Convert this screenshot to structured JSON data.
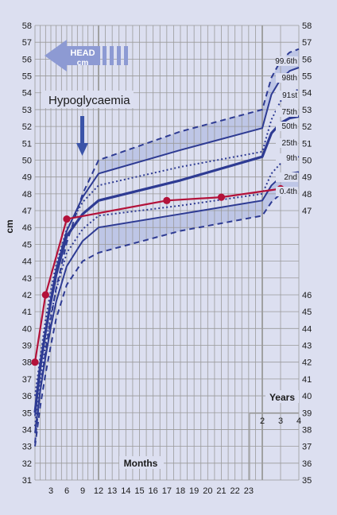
{
  "chart_data": {
    "type": "line",
    "title": "HEAD cm",
    "title_line1": "HEAD",
    "title_line2": "cm",
    "ylabel": "cm",
    "ylim": [
      31,
      58
    ],
    "y_ticks": [
      31,
      32,
      33,
      34,
      35,
      36,
      37,
      38,
      39,
      40,
      41,
      42,
      43,
      44,
      45,
      46,
      47,
      48,
      49,
      50,
      51,
      52,
      53,
      54,
      55,
      56,
      57,
      58
    ],
    "right_y_ticks_upper": [
      47,
      48,
      49,
      50,
      51,
      52,
      53,
      54,
      55,
      56,
      57,
      58
    ],
    "right_y_ticks_lower": [
      35,
      36,
      37,
      38,
      39,
      40,
      41,
      42,
      43,
      44,
      45,
      46
    ],
    "month_ticks": [
      3,
      6,
      9,
      12,
      13,
      14,
      15,
      16,
      17,
      18,
      19,
      20,
      21,
      22,
      23
    ],
    "year_ticks": [
      2,
      3,
      4
    ],
    "xlabel_months": "Months",
    "xlabel_years": "Years",
    "annotation": "Hypoglycaemia",
    "annotation_month": 9,
    "centile_labels": [
      "99.6th",
      "98th",
      "91st",
      "75th",
      "50th",
      "25th",
      "9th",
      "2nd",
      "0.4th"
    ],
    "centiles": [
      {
        "label": "99.6th",
        "style": "dashed",
        "x": [
          0,
          1,
          2,
          3,
          4,
          6,
          9,
          12,
          18,
          24,
          30,
          36,
          42,
          48
        ],
        "y": [
          33.2,
          36.4,
          38.6,
          40.6,
          42.4,
          45.1,
          48.0,
          50.0,
          51.7,
          53.0,
          54.9,
          55.9,
          56.4,
          56.6
        ]
      },
      {
        "label": "98th",
        "style": "solid",
        "x": [
          0,
          1,
          2,
          3,
          4,
          6,
          9,
          12,
          18,
          24,
          30,
          36,
          42,
          48
        ],
        "y": [
          34.8,
          37.5,
          39.8,
          41.8,
          43.5,
          45.8,
          47.8,
          49.2,
          50.6,
          51.9,
          53.9,
          54.8,
          55.3,
          55.5
        ]
      },
      {
        "label": "91st",
        "style": "dotted",
        "x": [
          0,
          1,
          2,
          3,
          4,
          6,
          9,
          12,
          18,
          24,
          30,
          36,
          42,
          48
        ],
        "y": [
          36.0,
          38.3,
          40.5,
          42.3,
          43.8,
          45.9,
          47.5,
          48.5,
          49.6,
          50.5,
          52.4,
          53.5,
          54.0,
          54.2
        ]
      },
      {
        "label": "50th",
        "style": "solid-thick",
        "x": [
          0,
          1,
          2,
          3,
          4,
          6,
          9,
          12,
          18,
          24,
          30,
          36,
          42,
          48
        ],
        "y": [
          35.0,
          37.8,
          39.8,
          41.6,
          43.2,
          45.5,
          46.8,
          47.6,
          48.8,
          50.2,
          51.6,
          52.2,
          52.5,
          52.6
        ]
      },
      {
        "label": "9th",
        "style": "dotted",
        "x": [
          0,
          1,
          2,
          3,
          4,
          6,
          9,
          12,
          18,
          24,
          30,
          36,
          42,
          48
        ],
        "y": [
          34.2,
          36.9,
          39.0,
          40.8,
          42.3,
          44.5,
          45.9,
          46.7,
          47.3,
          48.0,
          49.2,
          49.8,
          50.1,
          50.2
        ]
      },
      {
        "label": "2nd",
        "style": "solid",
        "x": [
          0,
          1,
          2,
          3,
          4,
          6,
          9,
          12,
          18,
          24,
          30,
          36,
          42,
          48
        ],
        "y": [
          33.8,
          36.3,
          38.3,
          40.1,
          41.6,
          43.7,
          45.2,
          46.0,
          46.8,
          47.6,
          48.5,
          49.0,
          49.2,
          49.3
        ]
      },
      {
        "label": "0.4th",
        "style": "dashed",
        "x": [
          0,
          1,
          2,
          3,
          4,
          6,
          9,
          12,
          18,
          24,
          30,
          36,
          42,
          48
        ],
        "y": [
          33.0,
          35.4,
          37.3,
          39.0,
          40.6,
          42.6,
          44.0,
          44.5,
          45.8,
          46.7,
          47.5,
          48.0,
          48.2,
          48.3
        ]
      }
    ],
    "series": [
      {
        "name": "",
        "x": [
          0,
          2,
          6,
          17,
          21,
          36
        ],
        "y": [
          38,
          42,
          46.5,
          47.6,
          47.8,
          48.3
        ]
      }
    ]
  },
  "colors": {
    "background": "#dcdff0",
    "grid": "#9a9a9a",
    "centile": "#2e3b93",
    "band": "#b8c2e4",
    "patient": "#b3123a",
    "arrow": "#3b54a8",
    "head_arrow": "#8d9ad3"
  }
}
